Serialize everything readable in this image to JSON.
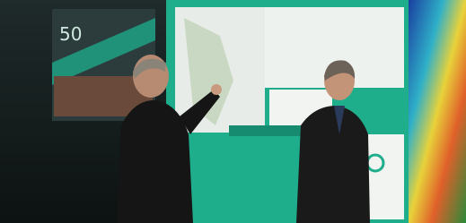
{
  "scene": {
    "panel_text": "50"
  }
}
